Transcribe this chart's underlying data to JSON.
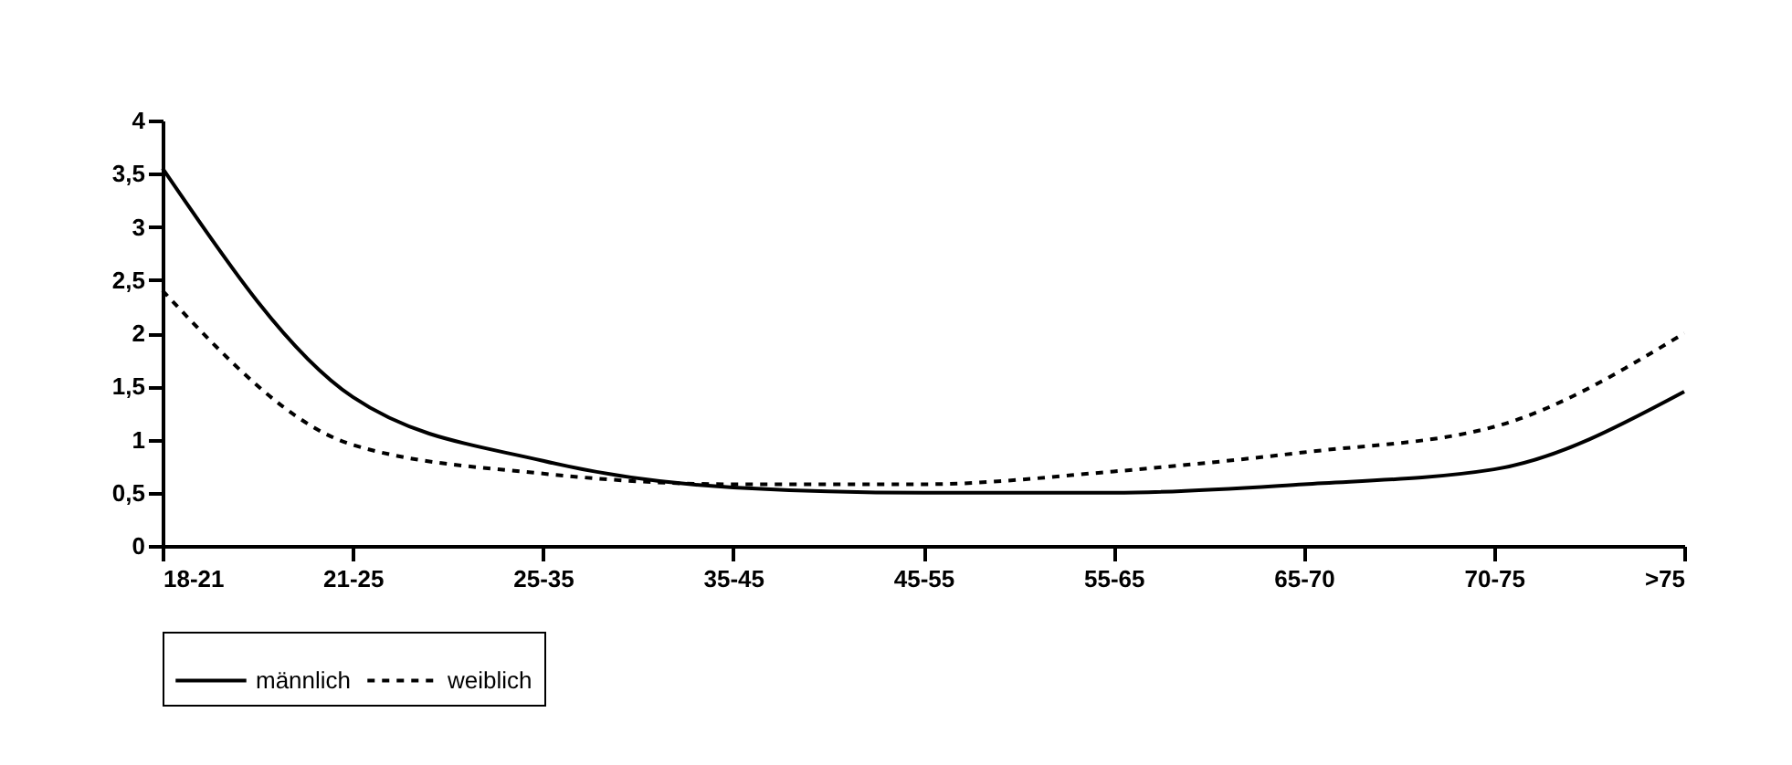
{
  "chart_data": {
    "type": "line",
    "categories": [
      "18-21",
      "21-25",
      "25-35",
      "35-45",
      "45-55",
      "55-65",
      "65-70",
      "70-75",
      ">75"
    ],
    "series": [
      {
        "name": "männlich",
        "color": "#000000",
        "line_style": "solid",
        "values": [
          3.55,
          1.4,
          0.8,
          0.55,
          0.5,
          0.5,
          0.58,
          0.72,
          1.45
        ]
      },
      {
        "name": "weiblich",
        "color": "#000000",
        "line_style": "dashed",
        "values": [
          2.4,
          0.95,
          0.68,
          0.58,
          0.58,
          0.7,
          0.88,
          1.12,
          2.0
        ]
      }
    ],
    "ylim": [
      0,
      4
    ],
    "yticks": [
      0,
      {
        "value": 0.5,
        "label": "0,5"
      },
      1,
      {
        "value": 1.5,
        "label": "1,5"
      },
      2,
      {
        "value": 2.5,
        "label": "2,5"
      },
      3,
      {
        "value": 3.5,
        "label": "3,5"
      },
      4
    ],
    "grid": false,
    "legend": "bottom",
    "marker": "none"
  }
}
